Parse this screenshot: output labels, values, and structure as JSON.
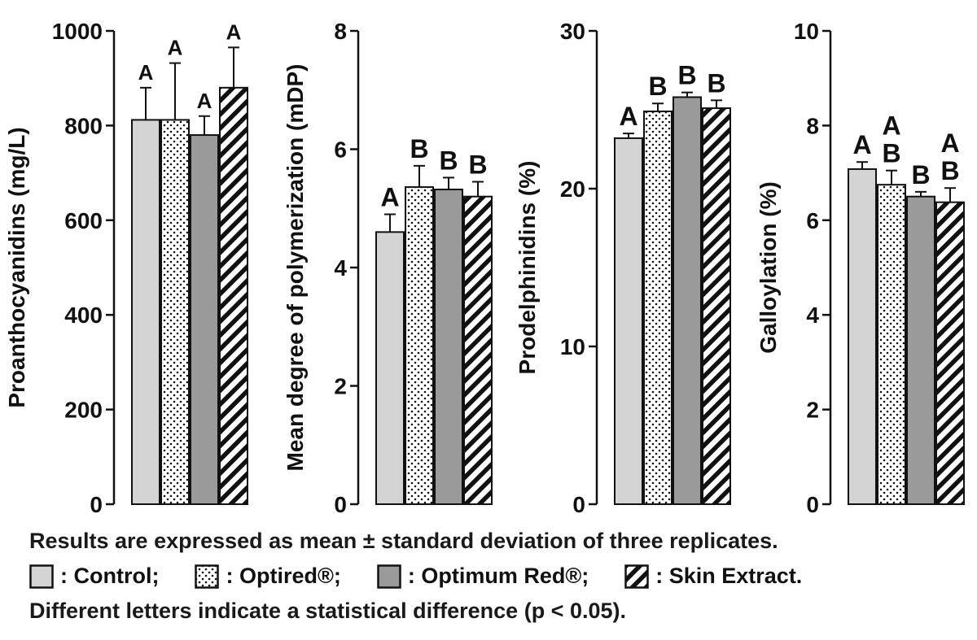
{
  "chart_data": [
    {
      "type": "bar",
      "ylabel": "Proanthocyanidins (mg/L)",
      "ylim": [
        0,
        1000
      ],
      "yticks": [
        "0",
        "200",
        "400",
        "600",
        "800",
        "1000"
      ],
      "series": [
        {
          "name": "Control",
          "value": 812,
          "error": 68,
          "letter": "A"
        },
        {
          "name": "Optired®",
          "value": 812,
          "error": 120,
          "letter": "A"
        },
        {
          "name": "Optimum Red®",
          "value": 780,
          "error": 40,
          "letter": "A"
        },
        {
          "name": "Skin Extract.",
          "value": 880,
          "error": 85,
          "letter": "A"
        }
      ]
    },
    {
      "type": "bar",
      "ylabel": "Mean degree of polymerization (mDP)",
      "ylim": [
        0,
        8
      ],
      "yticks": [
        "0",
        "2",
        "4",
        "6",
        "8"
      ],
      "series": [
        {
          "name": "Control",
          "value": 4.6,
          "error": 0.3,
          "letter": "A"
        },
        {
          "name": "Optired®",
          "value": 5.36,
          "error": 0.36,
          "letter": "B"
        },
        {
          "name": "Optimum Red®",
          "value": 5.32,
          "error": 0.2,
          "letter": "B"
        },
        {
          "name": "Skin Extract.",
          "value": 5.2,
          "error": 0.25,
          "letter": "B"
        }
      ]
    },
    {
      "type": "bar",
      "ylabel": "Prodelphinidins (%)",
      "ylim": [
        0,
        30
      ],
      "yticks": [
        "0",
        "10",
        "20",
        "30"
      ],
      "series": [
        {
          "name": "Control",
          "value": 23.2,
          "error": 0.3,
          "letter": "A"
        },
        {
          "name": "Optired®",
          "value": 24.9,
          "error": 0.5,
          "letter": "B"
        },
        {
          "name": "Optimum Red®",
          "value": 25.8,
          "error": 0.3,
          "letter": "B"
        },
        {
          "name": "Skin Extract.",
          "value": 25.1,
          "error": 0.5,
          "letter": "B"
        }
      ]
    },
    {
      "type": "bar",
      "ylabel": "Galloylation (%)",
      "ylim": [
        0,
        10
      ],
      "yticks": [
        "0",
        "2",
        "4",
        "6",
        "8",
        "10"
      ],
      "series": [
        {
          "name": "Control",
          "value": 7.08,
          "error": 0.15,
          "letter": "A"
        },
        {
          "name": "Optired®",
          "value": 6.75,
          "error": 0.3,
          "letter": "AB"
        },
        {
          "name": "Optimum Red®",
          "value": 6.5,
          "error": 0.1,
          "letter": "B"
        },
        {
          "name": "Skin Extract.",
          "value": 6.38,
          "error": 0.3,
          "letter": "AB"
        }
      ]
    }
  ],
  "notes": {
    "line1": "Results are expressed as mean ± standard deviation of three replicates.",
    "line3": "Different letters indicate a statistical difference (p < 0.05)."
  },
  "legend": [
    {
      "label": ": Control;",
      "pattern": "light-gray"
    },
    {
      "label": ": Optired®;",
      "pattern": "dots"
    },
    {
      "label": ": Optimum Red®;",
      "pattern": "dark-gray"
    },
    {
      "label": ": Skin Extract.",
      "pattern": "diagonal-stripes"
    }
  ],
  "colors": {
    "control": "#d4d4d4",
    "optimum_red": "#9a9a9a",
    "outline": "#111111"
  }
}
